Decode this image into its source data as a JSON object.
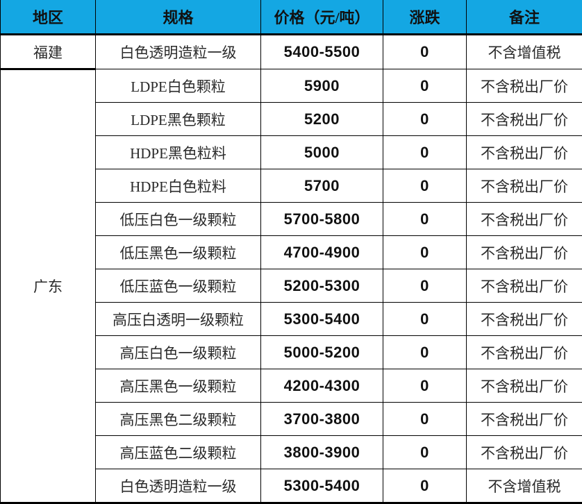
{
  "colors": {
    "header_bg": "#14a7e3",
    "header_text": "#111111",
    "border": "#000000",
    "body_text": "#2a2a2a"
  },
  "table": {
    "columns": [
      "地区",
      "规格",
      "价格（元/吨）",
      "涨跌",
      "备注"
    ],
    "regions": [
      {
        "name": "福建",
        "rows": [
          {
            "spec": "白色透明造粒一级",
            "price": "5400-5500",
            "change": "0",
            "note": "不含增值税"
          }
        ]
      },
      {
        "name": "广东",
        "rows": [
          {
            "spec": "LDPE白色颗粒",
            "price": "5900",
            "change": "0",
            "note": "不含税出厂价"
          },
          {
            "spec": "LDPE黑色颗粒",
            "price": "5200",
            "change": "0",
            "note": "不含税出厂价"
          },
          {
            "spec": "HDPE黑色粒料",
            "price": "5000",
            "change": "0",
            "note": "不含税出厂价"
          },
          {
            "spec": "HDPE白色粒料",
            "price": "5700",
            "change": "0",
            "note": "不含税出厂价"
          },
          {
            "spec": "低压白色一级颗粒",
            "price": "5700-5800",
            "change": "0",
            "note": "不含税出厂价"
          },
          {
            "spec": "低压黑色一级颗粒",
            "price": "4700-4900",
            "change": "0",
            "note": "不含税出厂价"
          },
          {
            "spec": "低压蓝色一级颗粒",
            "price": "5200-5300",
            "change": "0",
            "note": "不含税出厂价"
          },
          {
            "spec": "高压白透明一级颗粒",
            "price": "5300-5400",
            "change": "0",
            "note": "不含税出厂价"
          },
          {
            "spec": "高压白色一级颗粒",
            "price": "5000-5200",
            "change": "0",
            "note": "不含税出厂价"
          },
          {
            "spec": "高压黑色一级颗粒",
            "price": "4200-4300",
            "change": "0",
            "note": "不含税出厂价"
          },
          {
            "spec": "高压黑色二级颗粒",
            "price": "3700-3800",
            "change": "0",
            "note": "不含税出厂价"
          },
          {
            "spec": "高压蓝色二级颗粒",
            "price": "3800-3900",
            "change": "0",
            "note": "不含税出厂价"
          },
          {
            "spec": "白色透明造粒一级",
            "price": "5300-5400",
            "change": "0",
            "note": "不含增值税"
          }
        ]
      }
    ]
  }
}
